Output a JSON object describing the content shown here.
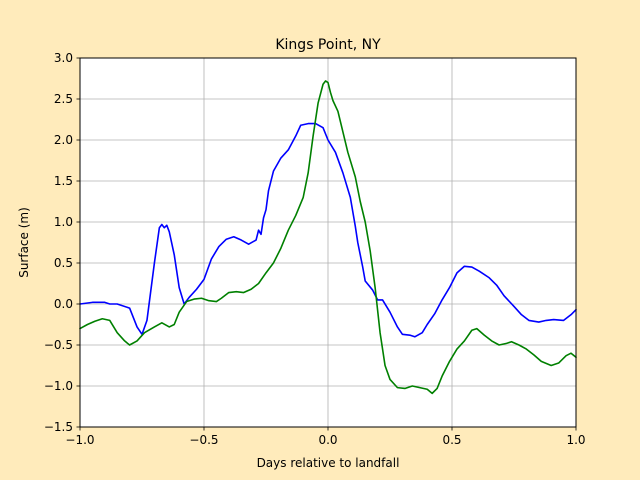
{
  "figure": {
    "background": "#ffebbb"
  },
  "chart_data": {
    "type": "line",
    "title": "Kings Point, NY",
    "xlabel": "Days relative to landfall",
    "ylabel": "Surface (m)",
    "xlim": [
      -1.0,
      1.0
    ],
    "ylim": [
      -1.5,
      3.0
    ],
    "x_ticks": [
      -1.0,
      -0.5,
      0.0,
      0.5,
      1.0
    ],
    "x_tick_labels": [
      "−1.0",
      "−0.5",
      "0.0",
      "0.5",
      "1.0"
    ],
    "y_ticks": [
      -1.5,
      -1.0,
      -0.5,
      0.0,
      0.5,
      1.0,
      1.5,
      2.0,
      2.5,
      3.0
    ],
    "y_tick_labels": [
      "−1.5",
      "−1.0",
      "−0.5",
      "0.0",
      "0.5",
      "1.0",
      "1.5",
      "2.0",
      "2.5",
      "3.0"
    ],
    "grid": true,
    "series": [
      {
        "color": "#0000ff",
        "points": [
          [
            -1.0,
            0.0
          ],
          [
            -0.95,
            0.02
          ],
          [
            -0.9,
            0.02
          ],
          [
            -0.88,
            0.0
          ],
          [
            -0.85,
            0.0
          ],
          [
            -0.8,
            -0.05
          ],
          [
            -0.77,
            -0.28
          ],
          [
            -0.75,
            -0.37
          ],
          [
            -0.73,
            -0.2
          ],
          [
            -0.7,
            0.5
          ],
          [
            -0.68,
            0.93
          ],
          [
            -0.67,
            0.97
          ],
          [
            -0.66,
            0.93
          ],
          [
            -0.65,
            0.96
          ],
          [
            -0.64,
            0.88
          ],
          [
            -0.62,
            0.6
          ],
          [
            -0.6,
            0.2
          ],
          [
            -0.58,
            0.0
          ],
          [
            -0.56,
            0.08
          ],
          [
            -0.53,
            0.18
          ],
          [
            -0.5,
            0.3
          ],
          [
            -0.47,
            0.55
          ],
          [
            -0.44,
            0.7
          ],
          [
            -0.41,
            0.79
          ],
          [
            -0.38,
            0.82
          ],
          [
            -0.35,
            0.78
          ],
          [
            -0.32,
            0.73
          ],
          [
            -0.29,
            0.78
          ],
          [
            -0.28,
            0.9
          ],
          [
            -0.27,
            0.85
          ],
          [
            -0.26,
            1.05
          ],
          [
            -0.25,
            1.15
          ],
          [
            -0.24,
            1.38
          ],
          [
            -0.22,
            1.62
          ],
          [
            -0.19,
            1.78
          ],
          [
            -0.16,
            1.88
          ],
          [
            -0.13,
            2.05
          ],
          [
            -0.11,
            2.18
          ],
          [
            -0.08,
            2.2
          ],
          [
            -0.05,
            2.2
          ],
          [
            -0.02,
            2.15
          ],
          [
            0.0,
            2.0
          ],
          [
            0.03,
            1.85
          ],
          [
            0.06,
            1.6
          ],
          [
            0.09,
            1.3
          ],
          [
            0.11,
            0.95
          ],
          [
            0.12,
            0.75
          ],
          [
            0.14,
            0.45
          ],
          [
            0.15,
            0.28
          ],
          [
            0.18,
            0.17
          ],
          [
            0.2,
            0.05
          ],
          [
            0.22,
            0.05
          ],
          [
            0.25,
            -0.1
          ],
          [
            0.28,
            -0.28
          ],
          [
            0.3,
            -0.37
          ],
          [
            0.33,
            -0.38
          ],
          [
            0.35,
            -0.4
          ],
          [
            0.38,
            -0.35
          ],
          [
            0.4,
            -0.25
          ],
          [
            0.43,
            -0.12
          ],
          [
            0.46,
            0.05
          ],
          [
            0.49,
            0.2
          ],
          [
            0.52,
            0.38
          ],
          [
            0.55,
            0.46
          ],
          [
            0.58,
            0.45
          ],
          [
            0.61,
            0.4
          ],
          [
            0.65,
            0.32
          ],
          [
            0.68,
            0.23
          ],
          [
            0.71,
            0.1
          ],
          [
            0.75,
            -0.03
          ],
          [
            0.78,
            -0.13
          ],
          [
            0.81,
            -0.2
          ],
          [
            0.85,
            -0.22
          ],
          [
            0.88,
            -0.2
          ],
          [
            0.91,
            -0.19
          ],
          [
            0.95,
            -0.2
          ],
          [
            0.98,
            -0.13
          ],
          [
            1.0,
            -0.07
          ]
        ]
      },
      {
        "color": "#008000",
        "points": [
          [
            -1.0,
            -0.3
          ],
          [
            -0.97,
            -0.25
          ],
          [
            -0.94,
            -0.21
          ],
          [
            -0.91,
            -0.18
          ],
          [
            -0.88,
            -0.2
          ],
          [
            -0.85,
            -0.35
          ],
          [
            -0.82,
            -0.45
          ],
          [
            -0.8,
            -0.5
          ],
          [
            -0.77,
            -0.45
          ],
          [
            -0.74,
            -0.35
          ],
          [
            -0.7,
            -0.28
          ],
          [
            -0.67,
            -0.23
          ],
          [
            -0.64,
            -0.28
          ],
          [
            -0.62,
            -0.25
          ],
          [
            -0.6,
            -0.1
          ],
          [
            -0.57,
            0.03
          ],
          [
            -0.54,
            0.06
          ],
          [
            -0.51,
            0.07
          ],
          [
            -0.48,
            0.04
          ],
          [
            -0.45,
            0.03
          ],
          [
            -0.43,
            0.07
          ],
          [
            -0.4,
            0.14
          ],
          [
            -0.37,
            0.15
          ],
          [
            -0.34,
            0.14
          ],
          [
            -0.31,
            0.18
          ],
          [
            -0.28,
            0.25
          ],
          [
            -0.25,
            0.38
          ],
          [
            -0.22,
            0.5
          ],
          [
            -0.19,
            0.68
          ],
          [
            -0.16,
            0.9
          ],
          [
            -0.13,
            1.08
          ],
          [
            -0.1,
            1.3
          ],
          [
            -0.08,
            1.6
          ],
          [
            -0.06,
            2.05
          ],
          [
            -0.04,
            2.45
          ],
          [
            -0.02,
            2.68
          ],
          [
            -0.01,
            2.72
          ],
          [
            0.0,
            2.7
          ],
          [
            0.01,
            2.58
          ],
          [
            0.02,
            2.48
          ],
          [
            0.04,
            2.35
          ],
          [
            0.06,
            2.1
          ],
          [
            0.08,
            1.85
          ],
          [
            0.11,
            1.55
          ],
          [
            0.13,
            1.25
          ],
          [
            0.15,
            1.0
          ],
          [
            0.17,
            0.65
          ],
          [
            0.19,
            0.2
          ],
          [
            0.21,
            -0.35
          ],
          [
            0.23,
            -0.75
          ],
          [
            0.25,
            -0.92
          ],
          [
            0.28,
            -1.02
          ],
          [
            0.31,
            -1.03
          ],
          [
            0.34,
            -1.0
          ],
          [
            0.37,
            -1.02
          ],
          [
            0.4,
            -1.04
          ],
          [
            0.42,
            -1.09
          ],
          [
            0.44,
            -1.03
          ],
          [
            0.46,
            -0.88
          ],
          [
            0.49,
            -0.7
          ],
          [
            0.52,
            -0.55
          ],
          [
            0.55,
            -0.45
          ],
          [
            0.58,
            -0.32
          ],
          [
            0.6,
            -0.3
          ],
          [
            0.63,
            -0.38
          ],
          [
            0.66,
            -0.45
          ],
          [
            0.69,
            -0.5
          ],
          [
            0.72,
            -0.48
          ],
          [
            0.74,
            -0.46
          ],
          [
            0.77,
            -0.5
          ],
          [
            0.8,
            -0.55
          ],
          [
            0.83,
            -0.62
          ],
          [
            0.86,
            -0.7
          ],
          [
            0.9,
            -0.75
          ],
          [
            0.93,
            -0.72
          ],
          [
            0.96,
            -0.63
          ],
          [
            0.98,
            -0.6
          ],
          [
            1.0,
            -0.65
          ]
        ]
      }
    ]
  }
}
